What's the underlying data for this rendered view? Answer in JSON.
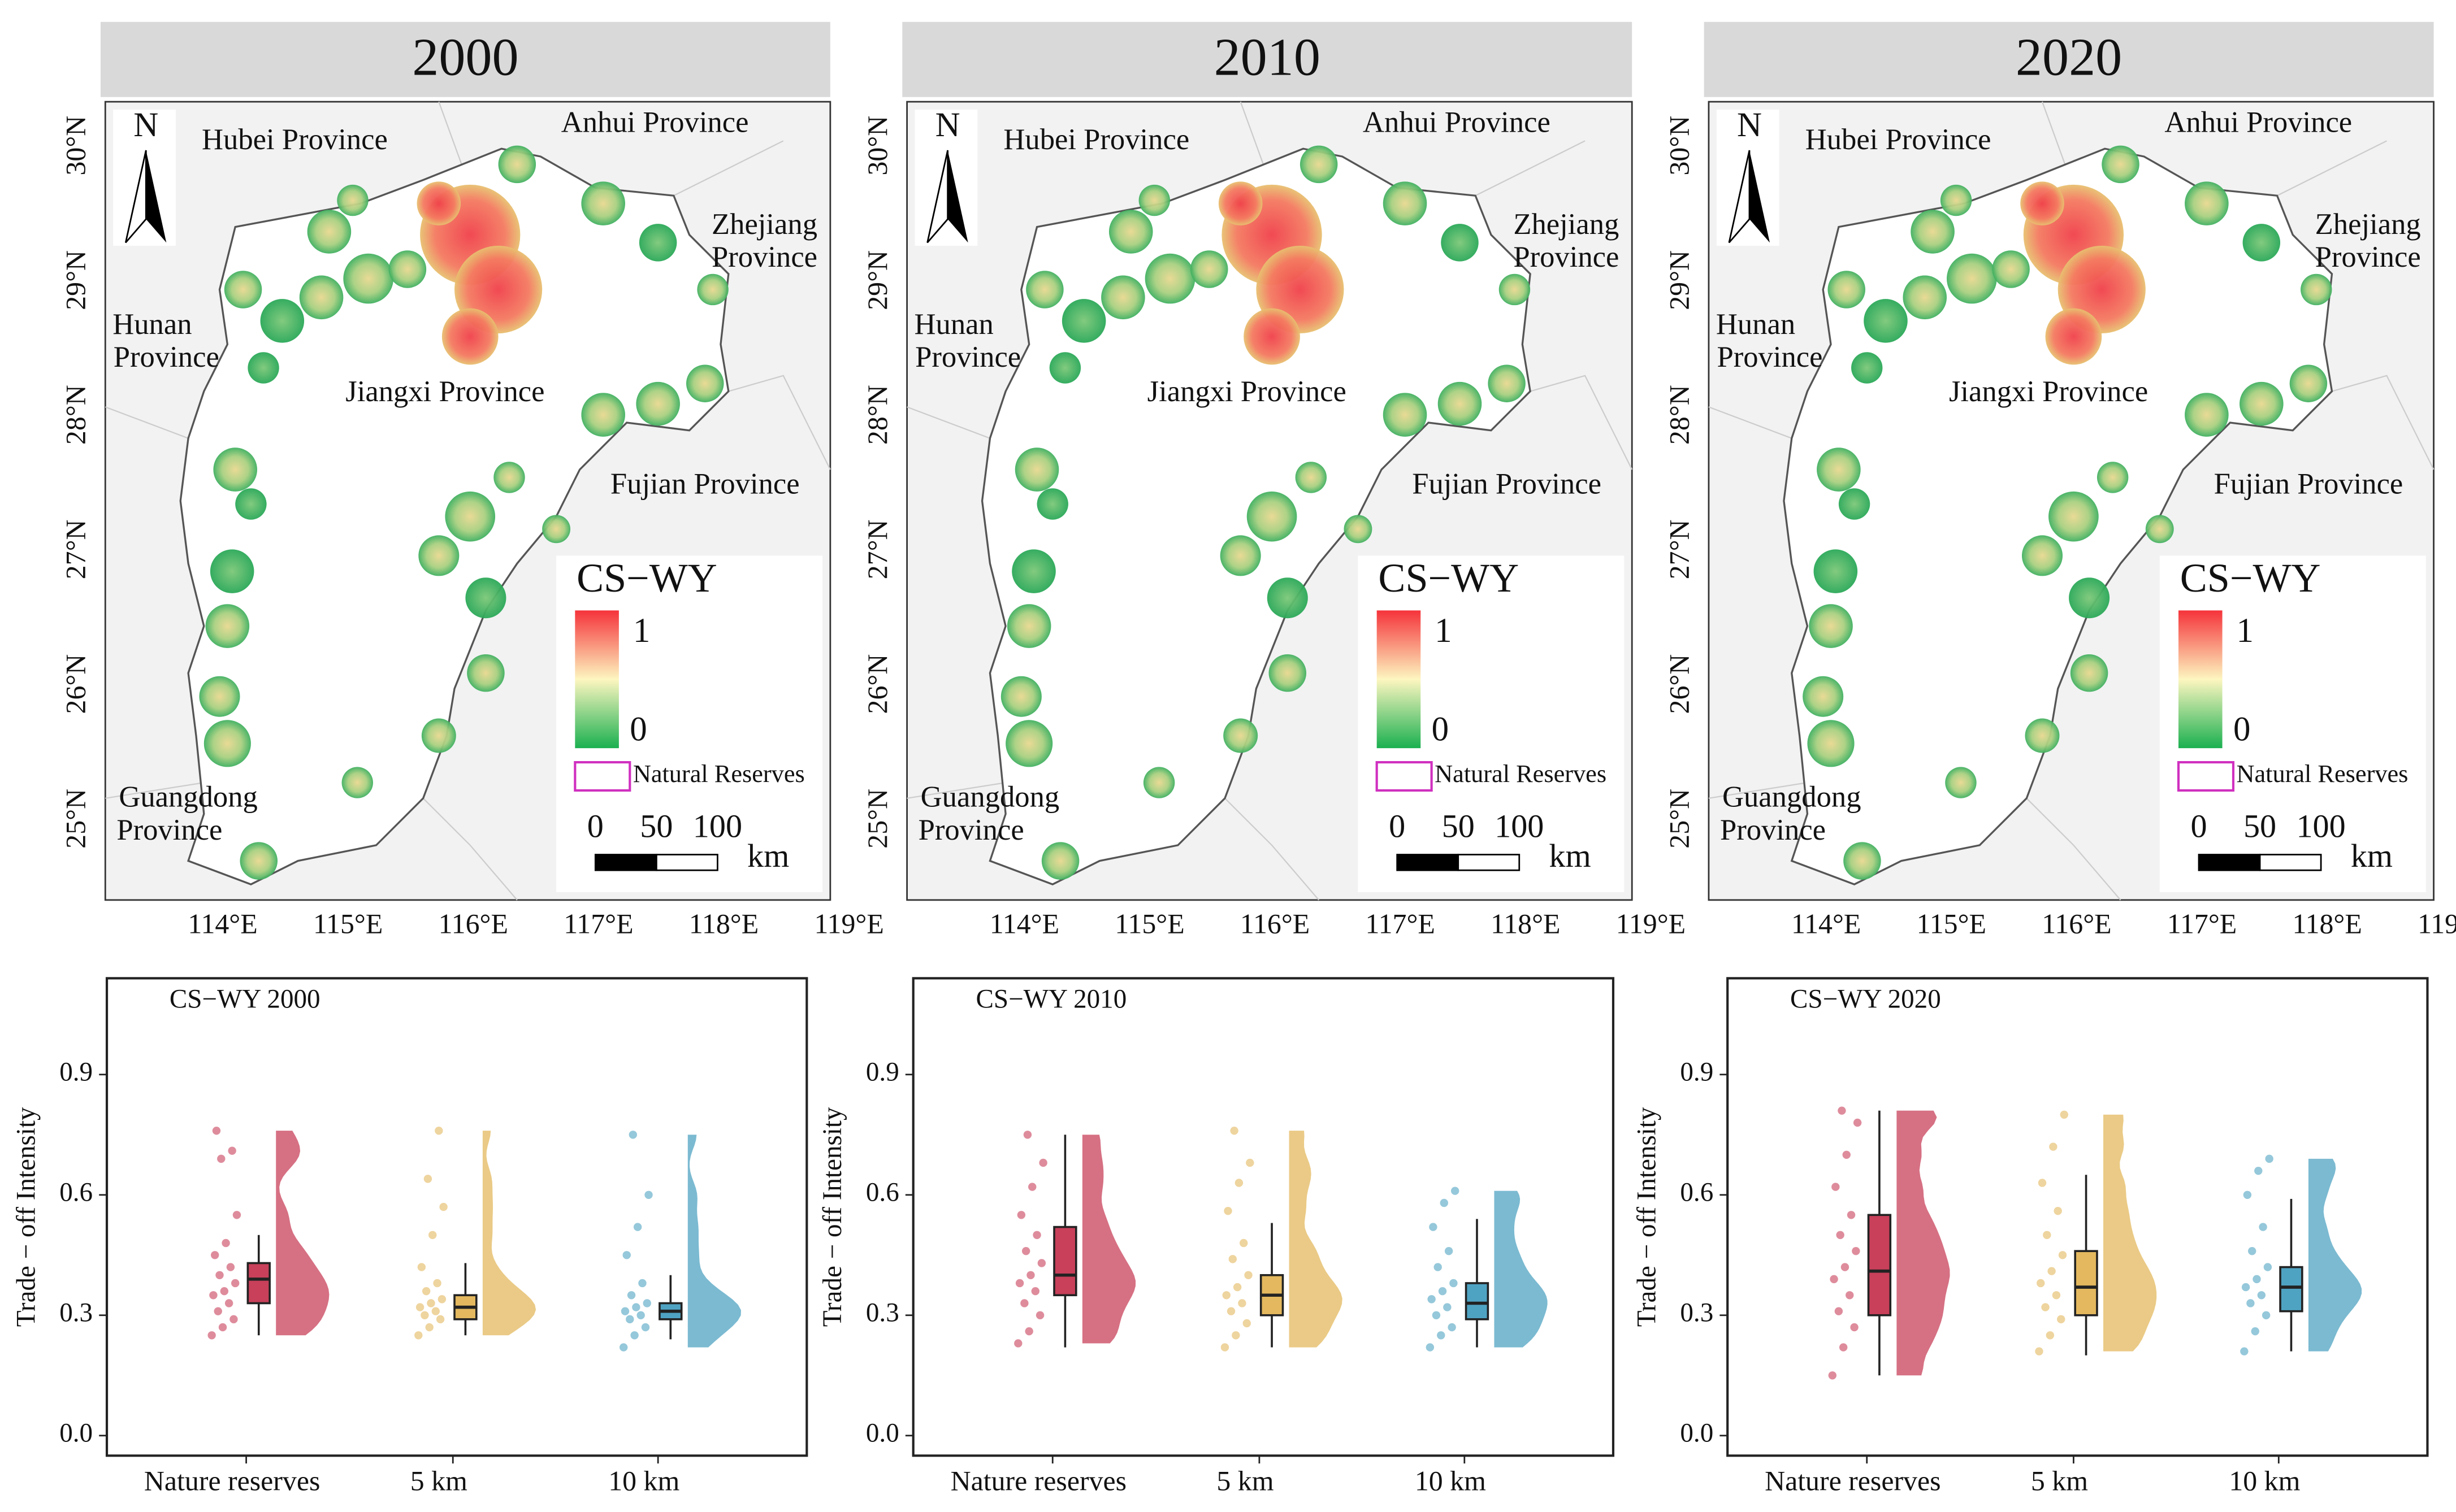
{
  "maps": {
    "titles": [
      "2000",
      "2010",
      "2020"
    ],
    "north": "N",
    "lon_ticks": [
      "114°E",
      "115°E",
      "116°E",
      "117°E",
      "118°E",
      "119°E"
    ],
    "lat_ticks": [
      "30°N",
      "29°N",
      "28°N",
      "27°N",
      "26°N",
      "25°N"
    ],
    "provinces": [
      "Hubei Province",
      "Anhui Province",
      "Zhejiang",
      "Province",
      "Hunan",
      "Province",
      "Jiangxi Province",
      "Fujian Province",
      "Guangdong",
      "Province"
    ],
    "legend_title": "CS−WY",
    "legend_max": "1",
    "legend_min": "0",
    "reserve_label": "Natural Reserves",
    "scale_labels": [
      "0",
      "50",
      "100"
    ],
    "scale_unit": "km"
  },
  "chart_data": [
    {
      "type": "box",
      "title": "CS−WY 2000",
      "ylabel": "Trade − off Intensity",
      "categories": [
        "Nature reserves",
        "5 km",
        "10 km"
      ],
      "colors": [
        "#c8405a",
        "#e3b85e",
        "#4fa3c2"
      ],
      "ylim": [
        -0.05,
        1.14
      ],
      "yticks": [
        {
          "value": 0,
          "label": "0.0"
        },
        0.3,
        0.6,
        0.9
      ],
      "stats": [
        {
          "low": 0.25,
          "q1": 0.33,
          "median": 0.39,
          "q3": 0.43,
          "high": 0.5
        },
        {
          "low": 0.25,
          "q1": 0.29,
          "median": 0.32,
          "q3": 0.35,
          "high": 0.43
        },
        {
          "low": 0.24,
          "q1": 0.29,
          "median": 0.31,
          "q3": 0.33,
          "high": 0.4
        }
      ],
      "points": [
        [
          0.25,
          0.27,
          0.29,
          0.31,
          0.33,
          0.35,
          0.36,
          0.38,
          0.4,
          0.42,
          0.45,
          0.48,
          0.55,
          0.69,
          0.71,
          0.76
        ],
        [
          0.25,
          0.27,
          0.29,
          0.3,
          0.31,
          0.32,
          0.33,
          0.34,
          0.36,
          0.38,
          0.42,
          0.5,
          0.57,
          0.64,
          0.76
        ],
        [
          0.22,
          0.25,
          0.27,
          0.29,
          0.3,
          0.31,
          0.32,
          0.33,
          0.35,
          0.38,
          0.45,
          0.52,
          0.6,
          0.75
        ]
      ]
    },
    {
      "type": "box",
      "title": "CS−WY 2010",
      "ylabel": "Trade − off Intensity",
      "categories": [
        "Nature reserves",
        "5 km",
        "10 km"
      ],
      "colors": [
        "#c8405a",
        "#e3b85e",
        "#4fa3c2"
      ],
      "ylim": [
        -0.05,
        1.14
      ],
      "yticks": [
        {
          "value": 0,
          "label": "0.0"
        },
        0.3,
        0.6,
        0.9
      ],
      "stats": [
        {
          "low": 0.22,
          "q1": 0.35,
          "median": 0.4,
          "q3": 0.52,
          "high": 0.75
        },
        {
          "low": 0.22,
          "q1": 0.3,
          "median": 0.35,
          "q3": 0.4,
          "high": 0.53
        },
        {
          "low": 0.22,
          "q1": 0.29,
          "median": 0.33,
          "q3": 0.38,
          "high": 0.54
        }
      ],
      "points": [
        [
          0.23,
          0.26,
          0.3,
          0.33,
          0.36,
          0.38,
          0.4,
          0.43,
          0.46,
          0.5,
          0.55,
          0.62,
          0.68,
          0.75
        ],
        [
          0.22,
          0.25,
          0.28,
          0.31,
          0.33,
          0.35,
          0.37,
          0.4,
          0.44,
          0.48,
          0.56,
          0.63,
          0.68,
          0.76
        ],
        [
          0.22,
          0.25,
          0.27,
          0.3,
          0.32,
          0.34,
          0.36,
          0.38,
          0.42,
          0.46,
          0.52,
          0.58,
          0.61
        ]
      ]
    },
    {
      "type": "box",
      "title": "CS−WY 2020",
      "ylabel": "Trade − off Intensity",
      "categories": [
        "Nature reserves",
        "5 km",
        "10 km"
      ],
      "colors": [
        "#c8405a",
        "#e3b85e",
        "#4fa3c2"
      ],
      "ylim": [
        -0.05,
        1.14
      ],
      "yticks": [
        {
          "value": 0,
          "label": "0.0"
        },
        0.3,
        0.6,
        0.9
      ],
      "stats": [
        {
          "low": 0.15,
          "q1": 0.3,
          "median": 0.41,
          "q3": 0.55,
          "high": 0.81
        },
        {
          "low": 0.2,
          "q1": 0.3,
          "median": 0.37,
          "q3": 0.46,
          "high": 0.65
        },
        {
          "low": 0.21,
          "q1": 0.31,
          "median": 0.37,
          "q3": 0.42,
          "high": 0.59
        }
      ],
      "points": [
        [
          0.15,
          0.22,
          0.27,
          0.31,
          0.35,
          0.39,
          0.42,
          0.46,
          0.5,
          0.55,
          0.62,
          0.7,
          0.78,
          0.81
        ],
        [
          0.21,
          0.25,
          0.29,
          0.32,
          0.35,
          0.38,
          0.41,
          0.45,
          0.5,
          0.56,
          0.63,
          0.72,
          0.8
        ],
        [
          0.21,
          0.26,
          0.3,
          0.33,
          0.35,
          0.37,
          0.39,
          0.42,
          0.46,
          0.52,
          0.6,
          0.66,
          0.69
        ]
      ]
    }
  ]
}
